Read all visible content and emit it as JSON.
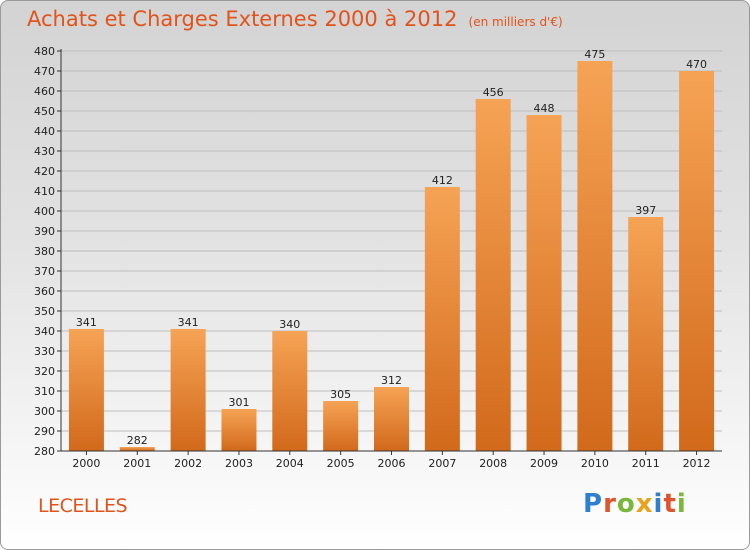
{
  "title": "Achats et Charges Externes 2000 à 2012",
  "subtitle": "(en milliers d'€)",
  "commune": "LECELLES",
  "logo": [
    "P",
    "r",
    "o",
    "x",
    "i",
    "t",
    "i"
  ],
  "colors": {
    "title": "#e2531b",
    "bar_top": "#f6a355",
    "bar_bottom": "#d2691b",
    "axis": "#333333"
  },
  "chart_data": {
    "type": "bar",
    "title": "Achats et Charges Externes 2000 à 2012",
    "subtitle": "(en milliers d'€)",
    "categories": [
      "2000",
      "2001",
      "2002",
      "2003",
      "2004",
      "2005",
      "2006",
      "2007",
      "2008",
      "2009",
      "2010",
      "2011",
      "2012"
    ],
    "values": [
      341,
      282,
      341,
      301,
      340,
      305,
      312,
      412,
      456,
      448,
      475,
      397,
      470
    ],
    "data_labels": [
      "341",
      "282",
      "341",
      "301",
      "340",
      "305",
      "312",
      "412",
      "456",
      "448",
      "475",
      "397",
      "470"
    ],
    "yticks": [
      "280",
      "290",
      "300",
      "310",
      "320",
      "330",
      "340",
      "350",
      "360",
      "370",
      "380",
      "390",
      "400",
      "410",
      "420",
      "430",
      "440",
      "450",
      "460",
      "470",
      "480"
    ],
    "ylim": [
      280,
      480
    ],
    "grid": true,
    "legend": "none"
  }
}
